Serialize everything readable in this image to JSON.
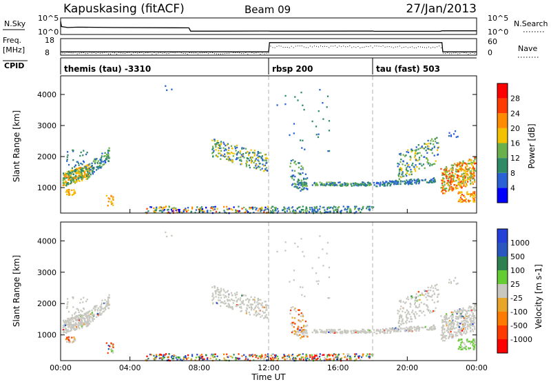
{
  "header": {
    "station": "Kapuskasing (fitACF)",
    "beam": "Beam 09",
    "date": "27/Jan/2013"
  },
  "colors": {
    "power": [
      "#0000ff",
      "#2a62d6",
      "#2f8a66",
      "#6ab04c",
      "#f2c200",
      "#ff8c00",
      "#ff3b00",
      "#ff0000"
    ],
    "velocity": [
      "#2340d8",
      "#2a56c0",
      "#2e8050",
      "#66cc33",
      "#c8c8c0",
      "#e8a628",
      "#ff7a00",
      "#ff3a00",
      "#ff0000"
    ],
    "ground": "#c8c8c0"
  },
  "chart_data": [
    {
      "type": "line",
      "name": "noise-panel",
      "left_label": [
        "N.Sky",
        "10^5",
        "10^0"
      ],
      "right_label": [
        "10^5",
        "10^0",
        "N.Search"
      ],
      "x": [
        0,
        0.05,
        0.4,
        1,
        3,
        7.4,
        7.5,
        9,
        12,
        12.1,
        14,
        18,
        18.1,
        21.9,
        22,
        24
      ],
      "y": [
        4.0,
        2.4,
        2.1,
        2.2,
        2.1,
        2.0,
        1.0,
        1.0,
        1.05,
        1.0,
        1.0,
        1.05,
        0.95,
        0.95,
        1.1,
        1.1
      ],
      "ylim": [
        0,
        5
      ]
    },
    {
      "type": "line",
      "name": "frequency-panel",
      "left_label": [
        "Freq.",
        "[MHz]",
        "18",
        "8"
      ],
      "right_label": [
        "60",
        "0",
        "Nave"
      ],
      "x": [
        0,
        12,
        12.05,
        22,
        22.05,
        24
      ],
      "y": [
        10,
        10,
        15.6,
        15.6,
        10,
        10
      ],
      "ylim": [
        8,
        18
      ]
    },
    {
      "type": "table",
      "name": "cpid-panel",
      "label": "CPID",
      "programs": [
        {
          "start": 0,
          "text": "themis (tau) -3310"
        },
        {
          "start": 12,
          "text": "rbsp 200"
        },
        {
          "start": 18,
          "text": "tau (fast) 503"
        }
      ]
    },
    {
      "type": "heatmap",
      "name": "power-panel",
      "ylabel": "Slant Range [km]",
      "yticks": [
        1000,
        2000,
        3000,
        4000
      ],
      "ylim": [
        180,
        4600
      ],
      "colorbar_label": "Power [dB]",
      "colorbar_ticks": [
        4,
        8,
        12,
        16,
        20,
        24,
        28
      ],
      "colorbar_range": [
        0,
        32
      ]
    },
    {
      "type": "heatmap",
      "name": "velocity-panel",
      "ylabel": "Slant Range [km]",
      "yticks": [
        1000,
        2000,
        3000,
        4000
      ],
      "ylim": [
        180,
        4600
      ],
      "colorbar_label": "Velocity [m s-1]",
      "colorbar_ticks": [
        "1000",
        "500",
        "100",
        "25",
        "-25",
        "-100",
        "-500",
        "-1000"
      ],
      "xlabel": "Time UT",
      "xticks": [
        "00:00",
        "04:00",
        "08:00",
        "12:00",
        "16:00",
        "20:00",
        "00:00"
      ],
      "xlim": [
        0,
        24
      ]
    }
  ]
}
